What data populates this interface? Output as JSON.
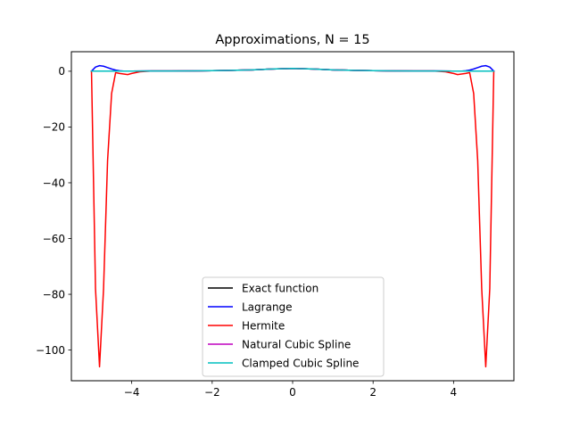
{
  "chart_data": {
    "type": "line",
    "title": "Approximations, N = 15",
    "xlabel": "",
    "ylabel": "",
    "xlim": [
      -5.5,
      5.5
    ],
    "ylim": [
      -111,
      7
    ],
    "xticks": [
      -4,
      -2,
      0,
      2,
      4
    ],
    "xtick_labels": [
      "−4",
      "−2",
      "0",
      "2",
      "4"
    ],
    "yticks": [
      0,
      -20,
      -40,
      -60,
      -80,
      -100
    ],
    "ytick_labels": [
      "0",
      "−20",
      "−40",
      "−60",
      "−80",
      "−100"
    ],
    "grid": false,
    "legend_position": "lower center",
    "series": [
      {
        "name": "Exact function",
        "color": "#000000",
        "x": [
          -5,
          -4.5,
          -4,
          -3.5,
          -3,
          -2.5,
          -2,
          -1.5,
          -1,
          -0.5,
          0,
          0.5,
          1,
          1.5,
          2,
          2.5,
          3,
          3.5,
          4,
          4.5,
          5
        ],
        "y": [
          0.04,
          0.05,
          0.06,
          0.08,
          0.1,
          0.14,
          0.2,
          0.31,
          0.5,
          0.8,
          1.0,
          0.8,
          0.5,
          0.31,
          0.2,
          0.14,
          0.1,
          0.08,
          0.06,
          0.05,
          0.04
        ]
      },
      {
        "name": "Lagrange",
        "color": "#0000ff",
        "x": [
          -5,
          -4.9,
          -4.8,
          -4.7,
          -4.6,
          -4.5,
          -4.4,
          -4.3,
          -4.2,
          -4,
          -3.5,
          -3,
          -2.5,
          -2,
          -1.5,
          -1,
          -0.5,
          0,
          0.5,
          1,
          1.5,
          2,
          2.5,
          3,
          3.5,
          4,
          4.2,
          4.3,
          4.4,
          4.5,
          4.6,
          4.7,
          4.8,
          4.9,
          5
        ],
        "y": [
          0.04,
          1.5,
          2.0,
          1.8,
          1.3,
          0.8,
          0.4,
          0.15,
          0.05,
          0.06,
          0.08,
          0.1,
          0.14,
          0.2,
          0.31,
          0.5,
          0.8,
          1.0,
          0.8,
          0.5,
          0.31,
          0.2,
          0.14,
          0.1,
          0.08,
          0.06,
          0.05,
          0.15,
          0.4,
          0.8,
          1.3,
          1.8,
          2.0,
          1.5,
          0.04
        ]
      },
      {
        "name": "Hermite",
        "color": "#ff0000",
        "x": [
          -5,
          -4.9,
          -4.8,
          -4.7,
          -4.6,
          -4.5,
          -4.4,
          -4.3,
          -4.2,
          -4.1,
          -4,
          -3.8,
          -3.5,
          -3,
          -2.5,
          -2,
          -1.5,
          -1,
          -0.5,
          0,
          0.5,
          1,
          1.5,
          2,
          2.5,
          3,
          3.5,
          3.8,
          4,
          4.1,
          4.2,
          4.3,
          4.4,
          4.5,
          4.6,
          4.7,
          4.8,
          4.9,
          5
        ],
        "y": [
          0.04,
          -78,
          -106,
          -78,
          -32,
          -8,
          -0.5,
          -0.8,
          -1.0,
          -1.2,
          -0.8,
          -0.2,
          0.08,
          0.1,
          0.14,
          0.2,
          0.31,
          0.5,
          0.8,
          1.0,
          0.8,
          0.5,
          0.31,
          0.2,
          0.14,
          0.1,
          0.08,
          -0.2,
          -0.8,
          -1.2,
          -1.0,
          -0.8,
          -0.5,
          -8,
          -32,
          -78,
          -106,
          -78,
          0.04
        ]
      },
      {
        "name": "Natural Cubic Spline",
        "color": "#bf00bf",
        "x": [
          -5,
          -4.5,
          -4,
          -3.5,
          -3,
          -2.5,
          -2,
          -1.5,
          -1,
          -0.5,
          0,
          0.5,
          1,
          1.5,
          2,
          2.5,
          3,
          3.5,
          4,
          4.5,
          5
        ],
        "y": [
          0.04,
          0.05,
          0.06,
          0.08,
          0.1,
          0.14,
          0.2,
          0.31,
          0.5,
          0.8,
          1.0,
          0.8,
          0.5,
          0.31,
          0.2,
          0.14,
          0.1,
          0.08,
          0.06,
          0.05,
          0.04
        ]
      },
      {
        "name": "Clamped Cubic Spline",
        "color": "#00bfbf",
        "x": [
          -5,
          -4.5,
          -4,
          -3.5,
          -3,
          -2.5,
          -2,
          -1.5,
          -1,
          -0.5,
          0,
          0.5,
          1,
          1.5,
          2,
          2.5,
          3,
          3.5,
          4,
          4.5,
          5
        ],
        "y": [
          0.04,
          0.05,
          0.06,
          0.08,
          0.1,
          0.14,
          0.2,
          0.31,
          0.5,
          0.8,
          1.0,
          0.8,
          0.5,
          0.31,
          0.2,
          0.14,
          0.1,
          0.08,
          0.06,
          0.05,
          0.04
        ]
      }
    ]
  }
}
